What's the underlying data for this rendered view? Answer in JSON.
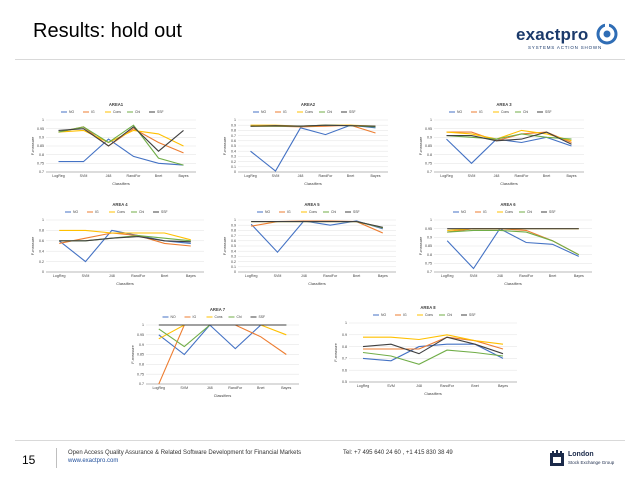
{
  "slide": {
    "title": "Results: hold out",
    "page_number": "15",
    "footer_line1": "Open Access Quality Assurance & Related Software Development for Financial Markets",
    "footer_link": "www.exactpro.com",
    "phone": "Tel: +7 495 640 24 60 ,  +1 415 830 38 49",
    "logo": {
      "word": "exactpro",
      "tagline": "SYSTEMS ACTION SHOWN"
    },
    "lse": {
      "line1": "London",
      "line2": "Stock Exchange Group"
    }
  },
  "colors": {
    "NO": "#4472c4",
    "IG": "#ed7d31",
    "Cons": "#ffc000",
    "Chi": "#70ad47",
    "SSF": "#404040"
  },
  "chart_data": [
    {
      "type": "line",
      "title": "AREA1",
      "categories": [
        "LogReg",
        "SVM",
        "J48",
        "RandFor",
        "Bnet",
        "Bayes"
      ],
      "yticks": [
        "0.7",
        "0.75",
        "0.8",
        "0.85",
        "0.9",
        "0.95",
        "1"
      ],
      "ylim": [
        0.7,
        1
      ],
      "xlabel": "Classifiers",
      "ylabel": "F-measure",
      "series": [
        {
          "name": "NO",
          "values": [
            0.76,
            0.76,
            0.89,
            0.79,
            0.75,
            0.74
          ]
        },
        {
          "name": "IG",
          "values": [
            0.93,
            0.96,
            0.85,
            0.95,
            0.87,
            0.81
          ]
        },
        {
          "name": "Cons",
          "values": [
            0.93,
            0.94,
            0.87,
            0.94,
            0.92,
            0.85
          ]
        },
        {
          "name": "Chi",
          "values": [
            0.93,
            0.96,
            0.87,
            0.97,
            0.78,
            0.74
          ]
        },
        {
          "name": "SSF",
          "values": [
            0.94,
            0.95,
            0.85,
            0.96,
            0.82,
            0.94
          ]
        }
      ]
    },
    {
      "type": "line",
      "title": "AREA2",
      "categories": [
        "LogReg",
        "SVM",
        "J48",
        "RandFor",
        "Bnet",
        "Bayes"
      ],
      "yticks": [
        "0",
        "0.1",
        "0.2",
        "0.3",
        "0.4",
        "0.5",
        "0.6",
        "0.7",
        "0.8",
        "0.9",
        "1"
      ],
      "ylim": [
        0,
        1
      ],
      "xlabel": "Classifiers",
      "ylabel": "F-measure",
      "series": [
        {
          "name": "NO",
          "values": [
            0.4,
            0.02,
            0.85,
            0.72,
            0.9,
            0.85
          ]
        },
        {
          "name": "IG",
          "values": [
            0.88,
            0.88,
            0.87,
            0.88,
            0.9,
            0.75
          ]
        },
        {
          "name": "Cons",
          "values": [
            0.9,
            0.9,
            0.88,
            0.9,
            0.9,
            0.88
          ]
        },
        {
          "name": "Chi",
          "values": [
            0.88,
            0.88,
            0.88,
            0.9,
            0.89,
            0.87
          ]
        },
        {
          "name": "SSF",
          "values": [
            0.88,
            0.89,
            0.88,
            0.9,
            0.89,
            0.88
          ]
        }
      ]
    },
    {
      "type": "line",
      "title": "AREA 3",
      "categories": [
        "LogReg",
        "SVM",
        "J48",
        "RandFor",
        "Bnet",
        "Bayes"
      ],
      "yticks": [
        "0.7",
        "0.75",
        "0.8",
        "0.85",
        "0.9",
        "0.95",
        "1"
      ],
      "ylim": [
        0.7,
        1
      ],
      "xlabel": "Classifiers",
      "ylabel": "F-measure",
      "series": [
        {
          "name": "NO",
          "values": [
            0.89,
            0.75,
            0.89,
            0.87,
            0.9,
            0.85
          ]
        },
        {
          "name": "IG",
          "values": [
            0.93,
            0.93,
            0.88,
            0.92,
            0.93,
            0.87
          ]
        },
        {
          "name": "Cons",
          "values": [
            0.93,
            0.92,
            0.89,
            0.94,
            0.92,
            0.88
          ]
        },
        {
          "name": "Chi",
          "values": [
            0.91,
            0.9,
            0.89,
            0.92,
            0.9,
            0.89
          ]
        },
        {
          "name": "SSF",
          "values": [
            0.91,
            0.91,
            0.88,
            0.89,
            0.93,
            0.86
          ]
        }
      ]
    },
    {
      "type": "line",
      "title": "AREA 4",
      "categories": [
        "LogReg",
        "SVM",
        "J48",
        "RandFor",
        "Bnet",
        "Bayes"
      ],
      "yticks": [
        "0",
        "0.2",
        "0.4",
        "0.6",
        "0.8",
        "1"
      ],
      "ylim": [
        0,
        1
      ],
      "xlabel": "Classifiers",
      "ylabel": "F-measure",
      "series": [
        {
          "name": "NO",
          "values": [
            0.6,
            0.2,
            0.8,
            0.7,
            0.6,
            0.55
          ]
        },
        {
          "name": "IG",
          "values": [
            0.55,
            0.65,
            0.75,
            0.7,
            0.55,
            0.5
          ]
        },
        {
          "name": "Cons",
          "values": [
            0.8,
            0.8,
            0.75,
            0.75,
            0.75,
            0.62
          ]
        },
        {
          "name": "Chi",
          "values": [
            0.6,
            0.6,
            0.65,
            0.7,
            0.65,
            0.6
          ]
        },
        {
          "name": "SSF",
          "values": [
            0.6,
            0.6,
            0.65,
            0.68,
            0.6,
            0.58
          ]
        }
      ]
    },
    {
      "type": "line",
      "title": "AREA 5",
      "categories": [
        "LogReg",
        "SVM",
        "J48",
        "RandFor",
        "Bnet",
        "Bayes"
      ],
      "yticks": [
        "0",
        "0.1",
        "0.2",
        "0.3",
        "0.4",
        "0.5",
        "0.6",
        "0.7",
        "0.8",
        "0.9",
        "1"
      ],
      "ylim": [
        0,
        1
      ],
      "xlabel": "Classifiers",
      "ylabel": "F-measure",
      "series": [
        {
          "name": "NO",
          "values": [
            0.92,
            0.38,
            0.98,
            0.9,
            0.98,
            0.83
          ]
        },
        {
          "name": "IG",
          "values": [
            0.88,
            0.97,
            0.98,
            0.98,
            0.97,
            0.75
          ]
        },
        {
          "name": "Cons",
          "values": [
            0.97,
            0.97,
            0.97,
            0.97,
            0.97,
            0.85
          ]
        },
        {
          "name": "Chi",
          "values": [
            0.97,
            0.97,
            0.97,
            0.97,
            0.97,
            0.85
          ]
        },
        {
          "name": "SSF",
          "values": [
            0.97,
            0.97,
            0.97,
            0.97,
            0.97,
            0.86
          ]
        }
      ]
    },
    {
      "type": "line",
      "title": "AREA 6",
      "categories": [
        "LogReg",
        "SVM",
        "J48",
        "RandFor",
        "Bnet",
        "Bayes"
      ],
      "yticks": [
        "0.7",
        "0.75",
        "0.8",
        "0.85",
        "0.9",
        "0.95",
        "1"
      ],
      "ylim": [
        0.7,
        1
      ],
      "xlabel": "Classifiers",
      "ylabel": "F-measure",
      "series": [
        {
          "name": "NO",
          "values": [
            0.88,
            0.72,
            0.95,
            0.87,
            0.86,
            0.79
          ]
        },
        {
          "name": "IG",
          "values": [
            0.93,
            0.95,
            0.95,
            0.94,
            0.88,
            0.8
          ]
        },
        {
          "name": "Cons",
          "values": [
            0.94,
            0.95,
            0.95,
            0.95,
            0.95,
            0.95
          ]
        },
        {
          "name": "Chi",
          "values": [
            0.93,
            0.94,
            0.94,
            0.93,
            0.88,
            0.8
          ]
        },
        {
          "name": "SSF",
          "values": [
            0.95,
            0.95,
            0.95,
            0.95,
            0.95,
            0.95
          ]
        }
      ]
    },
    {
      "type": "line",
      "title": "AREA 7",
      "categories": [
        "LogReg",
        "SVM",
        "J48",
        "RandFor",
        "Bnet",
        "Bayes"
      ],
      "yticks": [
        "0.7",
        "0.75",
        "0.8",
        "0.85",
        "0.9",
        "0.95",
        "1"
      ],
      "ylim": [
        0.7,
        1
      ],
      "xlabel": "Classifiers",
      "ylabel": "F-measure",
      "series": [
        {
          "name": "NO",
          "values": [
            0.95,
            0.85,
            1,
            0.88,
            1,
            1
          ]
        },
        {
          "name": "IG",
          "values": [
            0.7,
            1,
            1,
            1,
            0.94,
            0.85
          ]
        },
        {
          "name": "Cons",
          "values": [
            0.93,
            1,
            1,
            1,
            1,
            0.95
          ]
        },
        {
          "name": "Chi",
          "values": [
            0.98,
            0.89,
            1,
            1,
            1,
            1
          ]
        },
        {
          "name": "SSF",
          "values": [
            1,
            1,
            1,
            1,
            1,
            1
          ]
        }
      ]
    },
    {
      "type": "line",
      "title": "AREA 8",
      "categories": [
        "LogReg",
        "SVM",
        "J48",
        "RandFor",
        "Bnet",
        "Bayes"
      ],
      "yticks": [
        "0.5",
        "0.6",
        "0.7",
        "0.8",
        "0.9",
        "1"
      ],
      "ylim": [
        0.5,
        1
      ],
      "xlabel": "Classifiers",
      "ylabel": "F-measure",
      "series": [
        {
          "name": "NO",
          "values": [
            0.7,
            0.68,
            0.8,
            0.82,
            0.82,
            0.7
          ]
        },
        {
          "name": "IG",
          "values": [
            0.78,
            0.78,
            0.78,
            0.88,
            0.85,
            0.78
          ]
        },
        {
          "name": "Cons",
          "values": [
            0.88,
            0.88,
            0.86,
            0.9,
            0.85,
            0.82
          ]
        },
        {
          "name": "Chi",
          "values": [
            0.75,
            0.72,
            0.65,
            0.77,
            0.75,
            0.72
          ]
        },
        {
          "name": "SSF",
          "values": [
            0.8,
            0.82,
            0.74,
            0.88,
            0.82,
            0.74
          ]
        }
      ]
    }
  ]
}
